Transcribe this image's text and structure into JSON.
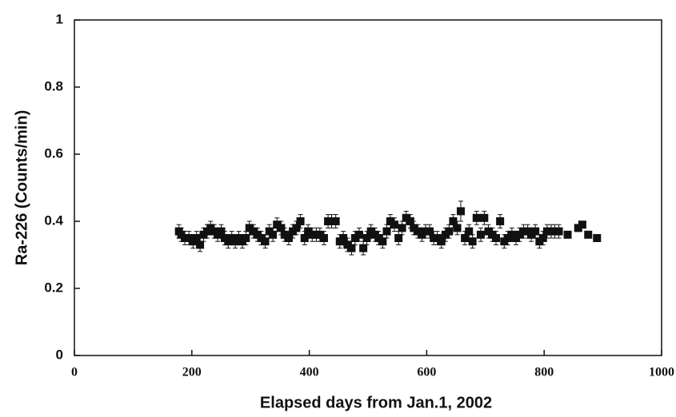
{
  "chart_data": {
    "type": "scatter",
    "x_label": "Elapsed days from Jan.1, 2002",
    "y_label": "Ra-226 (Counts/min)",
    "color": "#111111",
    "x": [
      178,
      182,
      188,
      195,
      202,
      208,
      214,
      220,
      226,
      232,
      238,
      244,
      250,
      256,
      262,
      268,
      274,
      280,
      286,
      292,
      298,
      305,
      312,
      318,
      325,
      332,
      338,
      345,
      352,
      358,
      365,
      372,
      378,
      385,
      392,
      398,
      405,
      412,
      418,
      425,
      432,
      438,
      445,
      452,
      458,
      465,
      472,
      478,
      485,
      492,
      498,
      505,
      512,
      518,
      525,
      532,
      538,
      545,
      552,
      558,
      565,
      572,
      578,
      585,
      592,
      598,
      605,
      612,
      618,
      625,
      632,
      638,
      645,
      652,
      658,
      665,
      672,
      678,
      685,
      692,
      698,
      705,
      712,
      718,
      725,
      732,
      738,
      745,
      752,
      758,
      765,
      772,
      778,
      785,
      792,
      798,
      805,
      812,
      818,
      825,
      840,
      858,
      865,
      875,
      890
    ],
    "values": [
      0.37,
      0.36,
      0.35,
      0.35,
      0.34,
      0.35,
      0.33,
      0.36,
      0.37,
      0.38,
      0.37,
      0.36,
      0.37,
      0.35,
      0.34,
      0.35,
      0.34,
      0.35,
      0.34,
      0.35,
      0.38,
      0.37,
      0.36,
      0.35,
      0.34,
      0.37,
      0.36,
      0.39,
      0.38,
      0.36,
      0.35,
      0.37,
      0.38,
      0.4,
      0.35,
      0.37,
      0.36,
      0.36,
      0.36,
      0.35,
      0.4,
      0.4,
      0.4,
      0.34,
      0.35,
      0.33,
      0.32,
      0.35,
      0.36,
      0.32,
      0.35,
      0.37,
      0.36,
      0.35,
      0.34,
      0.37,
      0.4,
      0.39,
      0.35,
      0.38,
      0.41,
      0.4,
      0.38,
      0.37,
      0.36,
      0.37,
      0.37,
      0.35,
      0.35,
      0.34,
      0.36,
      0.37,
      0.4,
      0.38,
      0.43,
      0.35,
      0.37,
      0.34,
      0.41,
      0.36,
      0.41,
      0.37,
      0.36,
      0.35,
      0.4,
      0.34,
      0.35,
      0.36,
      0.35,
      0.36,
      0.37,
      0.37,
      0.36,
      0.37,
      0.34,
      0.35,
      0.37,
      0.37,
      0.37,
      0.37,
      0.36,
      0.38,
      0.39,
      0.36,
      0.35
    ],
    "errors": [
      0.02,
      0.02,
      0.02,
      0.02,
      0.02,
      0.02,
      0.02,
      0.02,
      0.02,
      0.02,
      0.02,
      0.02,
      0.02,
      0.02,
      0.02,
      0.02,
      0.02,
      0.02,
      0.02,
      0.02,
      0.02,
      0.02,
      0.02,
      0.02,
      0.02,
      0.02,
      0.02,
      0.02,
      0.02,
      0.02,
      0.02,
      0.02,
      0.02,
      0.02,
      0.02,
      0.02,
      0.02,
      0.02,
      0.02,
      0.02,
      0.02,
      0.02,
      0.02,
      0.02,
      0.02,
      0.02,
      0.02,
      0.02,
      0.02,
      0.02,
      0.02,
      0.02,
      0.02,
      0.02,
      0.02,
      0.02,
      0.02,
      0.02,
      0.02,
      0.02,
      0.02,
      0.02,
      0.02,
      0.02,
      0.02,
      0.02,
      0.02,
      0.02,
      0.02,
      0.02,
      0.02,
      0.02,
      0.02,
      0.02,
      0.03,
      0.02,
      0.02,
      0.02,
      0.02,
      0.02,
      0.02,
      0.02,
      0.02,
      0.02,
      0.02,
      0.02,
      0.02,
      0.02,
      0.02,
      0.02,
      0.02,
      0.02,
      0.02,
      0.02,
      0.02,
      0.02,
      0.02,
      0.02,
      0.02,
      0.02,
      0.01,
      0.01,
      0.01,
      0.01,
      0.01
    ],
    "xlim": [
      0,
      1000
    ],
    "xticks": [
      0,
      200,
      400,
      600,
      800,
      1000
    ],
    "ylim": [
      0,
      1
    ],
    "yticks": [
      0,
      0.2,
      0.4,
      0.6,
      0.8,
      1
    ]
  }
}
